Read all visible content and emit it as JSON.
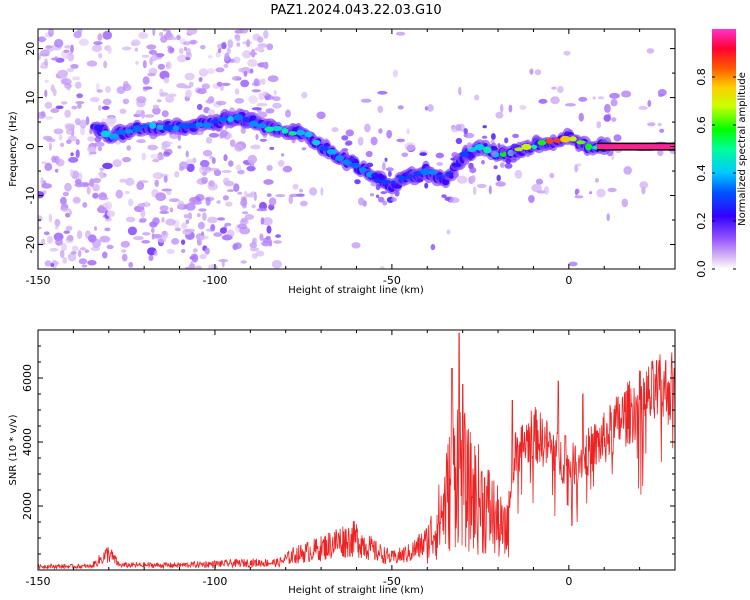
{
  "title": "PAZ1.2024.043.22.03.G10",
  "colors": {
    "snr_line": "#ee2222",
    "spectrogram_trace_low": "#9966ff",
    "spectrogram_trace_high": "#ff2266",
    "speckle": "#c7a6f2"
  },
  "chart_data": [
    {
      "type": "heatmap",
      "name": "spectrogram",
      "xlabel": "Height of straight line (km)",
      "ylabel": "Frequency (Hz)",
      "xlim": [
        -150,
        30
      ],
      "ylim": [
        -25,
        24
      ],
      "x_ticks": [
        -150,
        -100,
        -50,
        0
      ],
      "y_ticks": [
        -20,
        -10,
        0,
        10,
        20
      ],
      "x_tick_labels": [
        "-150",
        "-100",
        "-50",
        "0"
      ],
      "y_tick_labels": [
        "-20",
        "-10",
        "0",
        "10",
        "20"
      ],
      "colorbar": {
        "label": "Normalized spectral amplitude",
        "range": [
          0,
          1
        ],
        "ticks": [
          0.0,
          0.2,
          0.4,
          0.6,
          0.8
        ],
        "tick_labels": [
          "0.0",
          "0.2",
          "0.4",
          "0.6",
          "0.8"
        ]
      },
      "ridge": {
        "description_points": [
          {
            "x": -133,
            "freq": 4,
            "amp": 0.3
          },
          {
            "x": -130,
            "freq": 2,
            "amp": 0.45
          },
          {
            "x": -120,
            "freq": 4,
            "amp": 0.4
          },
          {
            "x": -110,
            "freq": 4,
            "amp": 0.35
          },
          {
            "x": -100,
            "freq": 5,
            "amp": 0.35
          },
          {
            "x": -95,
            "freq": 6,
            "amp": 0.4
          },
          {
            "x": -90,
            "freq": 5,
            "amp": 0.35
          },
          {
            "x": -80,
            "freq": 3,
            "amp": 0.55
          },
          {
            "x": -75,
            "freq": 3,
            "amp": 0.4
          },
          {
            "x": -70,
            "freq": 0,
            "amp": 0.4
          },
          {
            "x": -65,
            "freq": -2,
            "amp": 0.45
          },
          {
            "x": -60,
            "freq": -4,
            "amp": 0.4
          },
          {
            "x": -55,
            "freq": -6,
            "amp": 0.35
          },
          {
            "x": -50,
            "freq": -8,
            "amp": 0.3
          },
          {
            "x": -45,
            "freq": -6,
            "amp": 0.3
          },
          {
            "x": -40,
            "freq": -5,
            "amp": 0.35
          },
          {
            "x": -35,
            "freq": -7,
            "amp": 0.3
          },
          {
            "x": -30,
            "freq": -2,
            "amp": 0.3
          },
          {
            "x": -25,
            "freq": 0,
            "amp": 0.45
          },
          {
            "x": -20,
            "freq": -2,
            "amp": 0.5
          },
          {
            "x": -15,
            "freq": -1,
            "amp": 0.6
          },
          {
            "x": -10,
            "freq": 0,
            "amp": 0.65
          },
          {
            "x": -5,
            "freq": 1,
            "amp": 0.8
          },
          {
            "x": 0,
            "freq": 2,
            "amp": 0.75
          },
          {
            "x": 5,
            "freq": 0,
            "amp": 0.6
          },
          {
            "x": 10,
            "freq": 0,
            "amp": 0.55
          },
          {
            "x": 15,
            "freq": 0,
            "amp": 1.0
          },
          {
            "x": 20,
            "freq": 0,
            "amp": 1.0
          },
          {
            "x": 28,
            "freq": 0,
            "amp": 1.0
          }
        ]
      }
    },
    {
      "type": "line",
      "name": "snr",
      "xlabel": "Height of straight line (km)",
      "ylabel": "SNR (10 * v/v)",
      "xlim": [
        -150,
        30
      ],
      "ylim": [
        0,
        7500
      ],
      "x_ticks": [
        -150,
        -100,
        -50,
        0
      ],
      "y_ticks": [
        2000,
        4000,
        6000
      ],
      "x_tick_labels": [
        "-150",
        "-100",
        "-50",
        "0"
      ],
      "y_tick_labels": [
        "2000",
        "4000",
        "6000"
      ],
      "envelope": [
        {
          "x": -150,
          "y": 150
        },
        {
          "x": -135,
          "y": 150
        },
        {
          "x": -130,
          "y": 700
        },
        {
          "x": -127,
          "y": 200
        },
        {
          "x": -110,
          "y": 200
        },
        {
          "x": -100,
          "y": 250
        },
        {
          "x": -90,
          "y": 300
        },
        {
          "x": -82,
          "y": 300
        },
        {
          "x": -78,
          "y": 600
        },
        {
          "x": -70,
          "y": 900
        },
        {
          "x": -65,
          "y": 1200
        },
        {
          "x": -60,
          "y": 1300
        },
        {
          "x": -55,
          "y": 800
        },
        {
          "x": -50,
          "y": 500
        },
        {
          "x": -45,
          "y": 700
        },
        {
          "x": -40,
          "y": 1200
        },
        {
          "x": -37,
          "y": 2000
        },
        {
          "x": -35,
          "y": 2800
        },
        {
          "x": -33,
          "y": 3800
        },
        {
          "x": -31,
          "y": 5000
        },
        {
          "x": -29,
          "y": 3500
        },
        {
          "x": -25,
          "y": 3000
        },
        {
          "x": -22,
          "y": 2500
        },
        {
          "x": -18,
          "y": 1500
        },
        {
          "x": -15,
          "y": 4000
        },
        {
          "x": -10,
          "y": 4700
        },
        {
          "x": -5,
          "y": 4200
        },
        {
          "x": 0,
          "y": 3500
        },
        {
          "x": 5,
          "y": 4000
        },
        {
          "x": 10,
          "y": 4500
        },
        {
          "x": 15,
          "y": 5200
        },
        {
          "x": 20,
          "y": 5700
        },
        {
          "x": 25,
          "y": 6100
        },
        {
          "x": 30,
          "y": 6300
        }
      ],
      "peaks": [
        {
          "x": -31,
          "y": 7400
        },
        {
          "x": -33,
          "y": 6300
        },
        {
          "x": -30,
          "y": 5800
        },
        {
          "x": -16,
          "y": 5300
        },
        {
          "x": -3,
          "y": 5900
        },
        {
          "x": -1,
          "y": 4200
        },
        {
          "x": 4,
          "y": 5500
        }
      ]
    }
  ]
}
